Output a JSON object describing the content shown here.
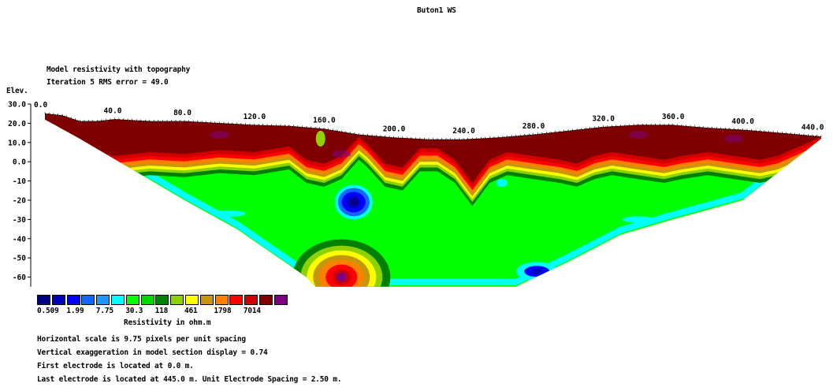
{
  "title": "Buton1 WS",
  "subtitle": "Model resistivity with topography",
  "iteration": "Iteration 5 RMS error = 49.0",
  "elev_label": "Elev.",
  "chart_data": {
    "type": "heatmap",
    "x_ticks": [
      "0.0",
      "40.0",
      "80.0",
      "120.0",
      "160.0",
      "200.0",
      "240.0",
      "280.0",
      "320.0",
      "360.0",
      "400.0",
      "440.0"
    ],
    "x_tick_values": [
      0,
      40,
      80,
      120,
      160,
      200,
      240,
      280,
      320,
      360,
      400,
      440
    ],
    "y_ticks": [
      "30.0",
      "20.0",
      "10.0",
      "0.0",
      "-10",
      "-20",
      "-30",
      "-40",
      "-50",
      "-60"
    ],
    "y_tick_values": [
      30,
      20,
      10,
      0,
      -10,
      -20,
      -30,
      -40,
      -50,
      -60
    ],
    "xlim": [
      0,
      445
    ],
    "ylim": [
      -65,
      30
    ],
    "topography": [
      [
        0,
        25
      ],
      [
        10,
        24
      ],
      [
        20,
        21
      ],
      [
        30,
        21
      ],
      [
        40,
        22
      ],
      [
        60,
        21
      ],
      [
        80,
        21
      ],
      [
        100,
        20
      ],
      [
        120,
        19
      ],
      [
        140,
        18.5
      ],
      [
        160,
        17
      ],
      [
        180,
        14
      ],
      [
        200,
        12.5
      ],
      [
        220,
        11.5
      ],
      [
        240,
        11.5
      ],
      [
        260,
        12.5
      ],
      [
        280,
        14
      ],
      [
        300,
        16
      ],
      [
        320,
        18
      ],
      [
        340,
        19
      ],
      [
        360,
        19
      ],
      [
        380,
        17.5
      ],
      [
        400,
        16.5
      ],
      [
        420,
        15
      ],
      [
        445,
        13
      ]
    ],
    "section_bottom": [
      [
        0,
        22
      ],
      [
        20,
        12
      ],
      [
        80,
        -20
      ],
      [
        110,
        -35
      ],
      [
        150,
        -60
      ],
      [
        155,
        -65
      ],
      [
        270,
        -65
      ],
      [
        300,
        -52
      ],
      [
        330,
        -38
      ],
      [
        360,
        -30
      ],
      [
        400,
        -20
      ],
      [
        445,
        12
      ]
    ]
  },
  "legend": {
    "colors": [
      "#00007f",
      "#0000bb",
      "#0000ff",
      "#1565ff",
      "#2196ff",
      "#00ffff",
      "#00ff00",
      "#00d800",
      "#007f00",
      "#8cd200",
      "#ffff00",
      "#c8960a",
      "#ff7f00",
      "#ff0000",
      "#d20000",
      "#7f0000",
      "#7f007f"
    ],
    "values": [
      "0.509",
      "1.99",
      "7.75",
      "30.3",
      "118",
      "461",
      "1798",
      "7014"
    ],
    "label": "Resistivity in ohm.m"
  },
  "notes": [
    "Horizontal scale is 9.75 pixels per unit spacing",
    "Vertical exaggeration in model section display = 0.74",
    "First electrode is located at 0.0  m.",
    "Last electrode is located at 445.0 m.    Unit Electrode Spacing = 2.50 m."
  ]
}
